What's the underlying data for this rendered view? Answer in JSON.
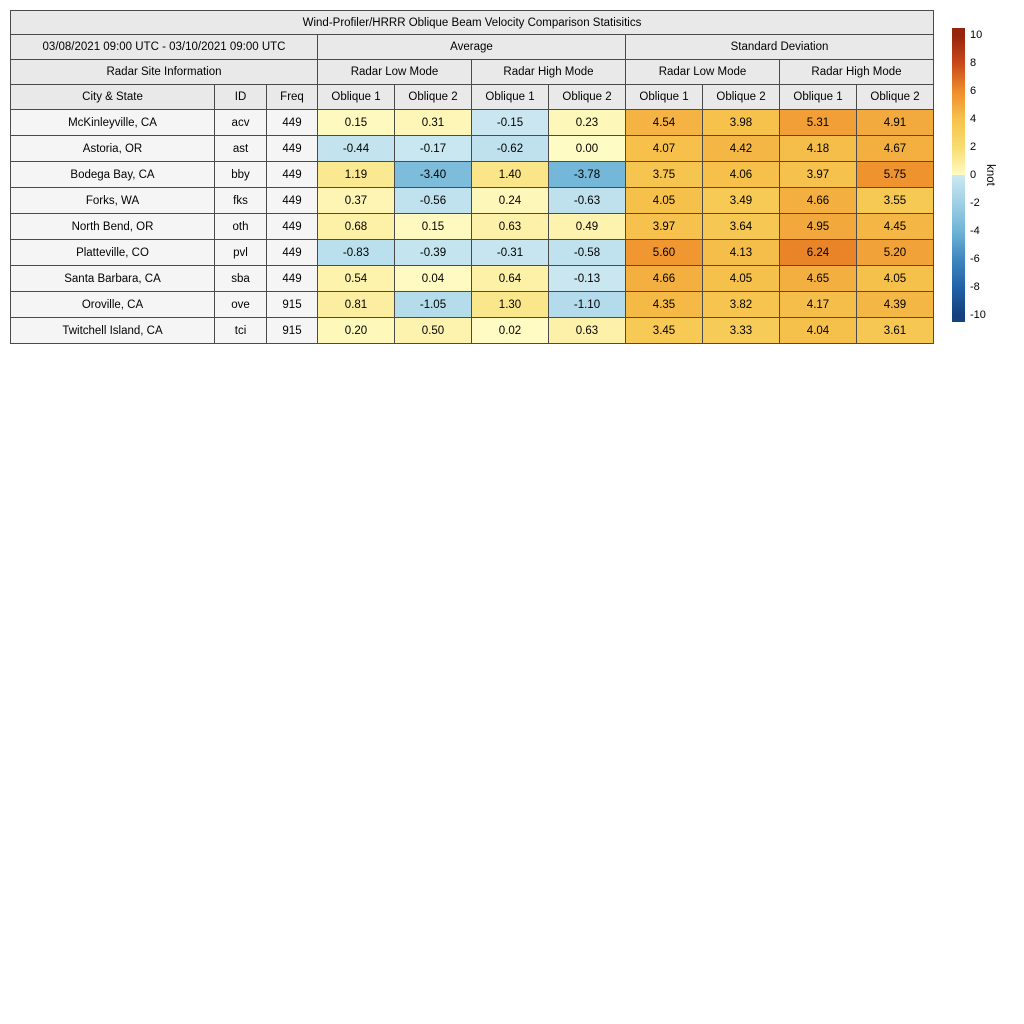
{
  "chart_data": {
    "type": "table",
    "title": "Wind-Profiler/HRRR Oblique Beam Velocity Comparison Statisitics",
    "date_range": "03/08/2021 09:00 UTC - 03/10/2021 09:00 UTC",
    "groups": {
      "site_info": "Radar Site Information",
      "average": "Average",
      "std_dev": "Standard Deviation",
      "low_mode": "Radar Low Mode",
      "high_mode": "Radar High Mode"
    },
    "columns": {
      "city": "City & State",
      "id": "ID",
      "freq": "Freq",
      "oblique1": "Oblique 1",
      "oblique2": "Oblique 2"
    },
    "value_column_order": [
      "avg_low_oblique1",
      "avg_low_oblique2",
      "avg_high_oblique1",
      "avg_high_oblique2",
      "sd_low_oblique1",
      "sd_low_oblique2",
      "sd_high_oblique1",
      "sd_high_oblique2"
    ],
    "rows": [
      {
        "city": "McKinleyville, CA",
        "id": "acv",
        "freq": "449",
        "values": [
          0.15,
          0.31,
          -0.15,
          0.23,
          4.54,
          3.98,
          5.31,
          4.91
        ]
      },
      {
        "city": "Astoria, OR",
        "id": "ast",
        "freq": "449",
        "values": [
          -0.44,
          -0.17,
          -0.62,
          0.0,
          4.07,
          4.42,
          4.18,
          4.67
        ]
      },
      {
        "city": "Bodega Bay, CA",
        "id": "bby",
        "freq": "449",
        "values": [
          1.19,
          -3.4,
          1.4,
          -3.78,
          3.75,
          4.06,
          3.97,
          5.75
        ]
      },
      {
        "city": "Forks, WA",
        "id": "fks",
        "freq": "449",
        "values": [
          0.37,
          -0.56,
          0.24,
          -0.63,
          4.05,
          3.49,
          4.66,
          3.55
        ]
      },
      {
        "city": "North Bend, OR",
        "id": "oth",
        "freq": "449",
        "values": [
          0.68,
          0.15,
          0.63,
          0.49,
          3.97,
          3.64,
          4.95,
          4.45
        ]
      },
      {
        "city": "Platteville, CO",
        "id": "pvl",
        "freq": "449",
        "values": [
          -0.83,
          -0.39,
          -0.31,
          -0.58,
          5.6,
          4.13,
          6.24,
          5.2
        ]
      },
      {
        "city": "Santa Barbara, CA",
        "id": "sba",
        "freq": "449",
        "values": [
          0.54,
          0.04,
          0.64,
          -0.13,
          4.66,
          4.05,
          4.65,
          4.05
        ]
      },
      {
        "city": "Oroville, CA",
        "id": "ove",
        "freq": "915",
        "values": [
          0.81,
          -1.05,
          1.3,
          -1.1,
          4.35,
          3.82,
          4.17,
          4.39
        ]
      },
      {
        "city": "Twitchell Island, CA",
        "id": "tci",
        "freq": "915",
        "values": [
          0.2,
          0.5,
          0.02,
          0.63,
          3.45,
          3.33,
          4.04,
          3.61
        ]
      }
    ],
    "colorbar": {
      "label": "knot",
      "vmin": -10.5,
      "vmax": 10.5,
      "ticks": [
        10,
        8,
        6,
        4,
        2,
        0,
        -2,
        -4,
        -6,
        -8,
        -10
      ],
      "positive_stops": [
        [
          0,
          "#FFFBC4"
        ],
        [
          2,
          "#F8DC6E"
        ],
        [
          4,
          "#F6C24C"
        ],
        [
          6,
          "#EE8C2A"
        ],
        [
          8,
          "#C8481A"
        ],
        [
          10,
          "#96230C"
        ]
      ],
      "negative_stops": [
        [
          0,
          "#CDE9F2"
        ],
        [
          -2,
          "#9FD0E5"
        ],
        [
          -4,
          "#6FB4D6"
        ],
        [
          -6,
          "#3F88C0"
        ],
        [
          -8,
          "#2262A9"
        ],
        [
          -10,
          "#15417E"
        ]
      ]
    }
  }
}
